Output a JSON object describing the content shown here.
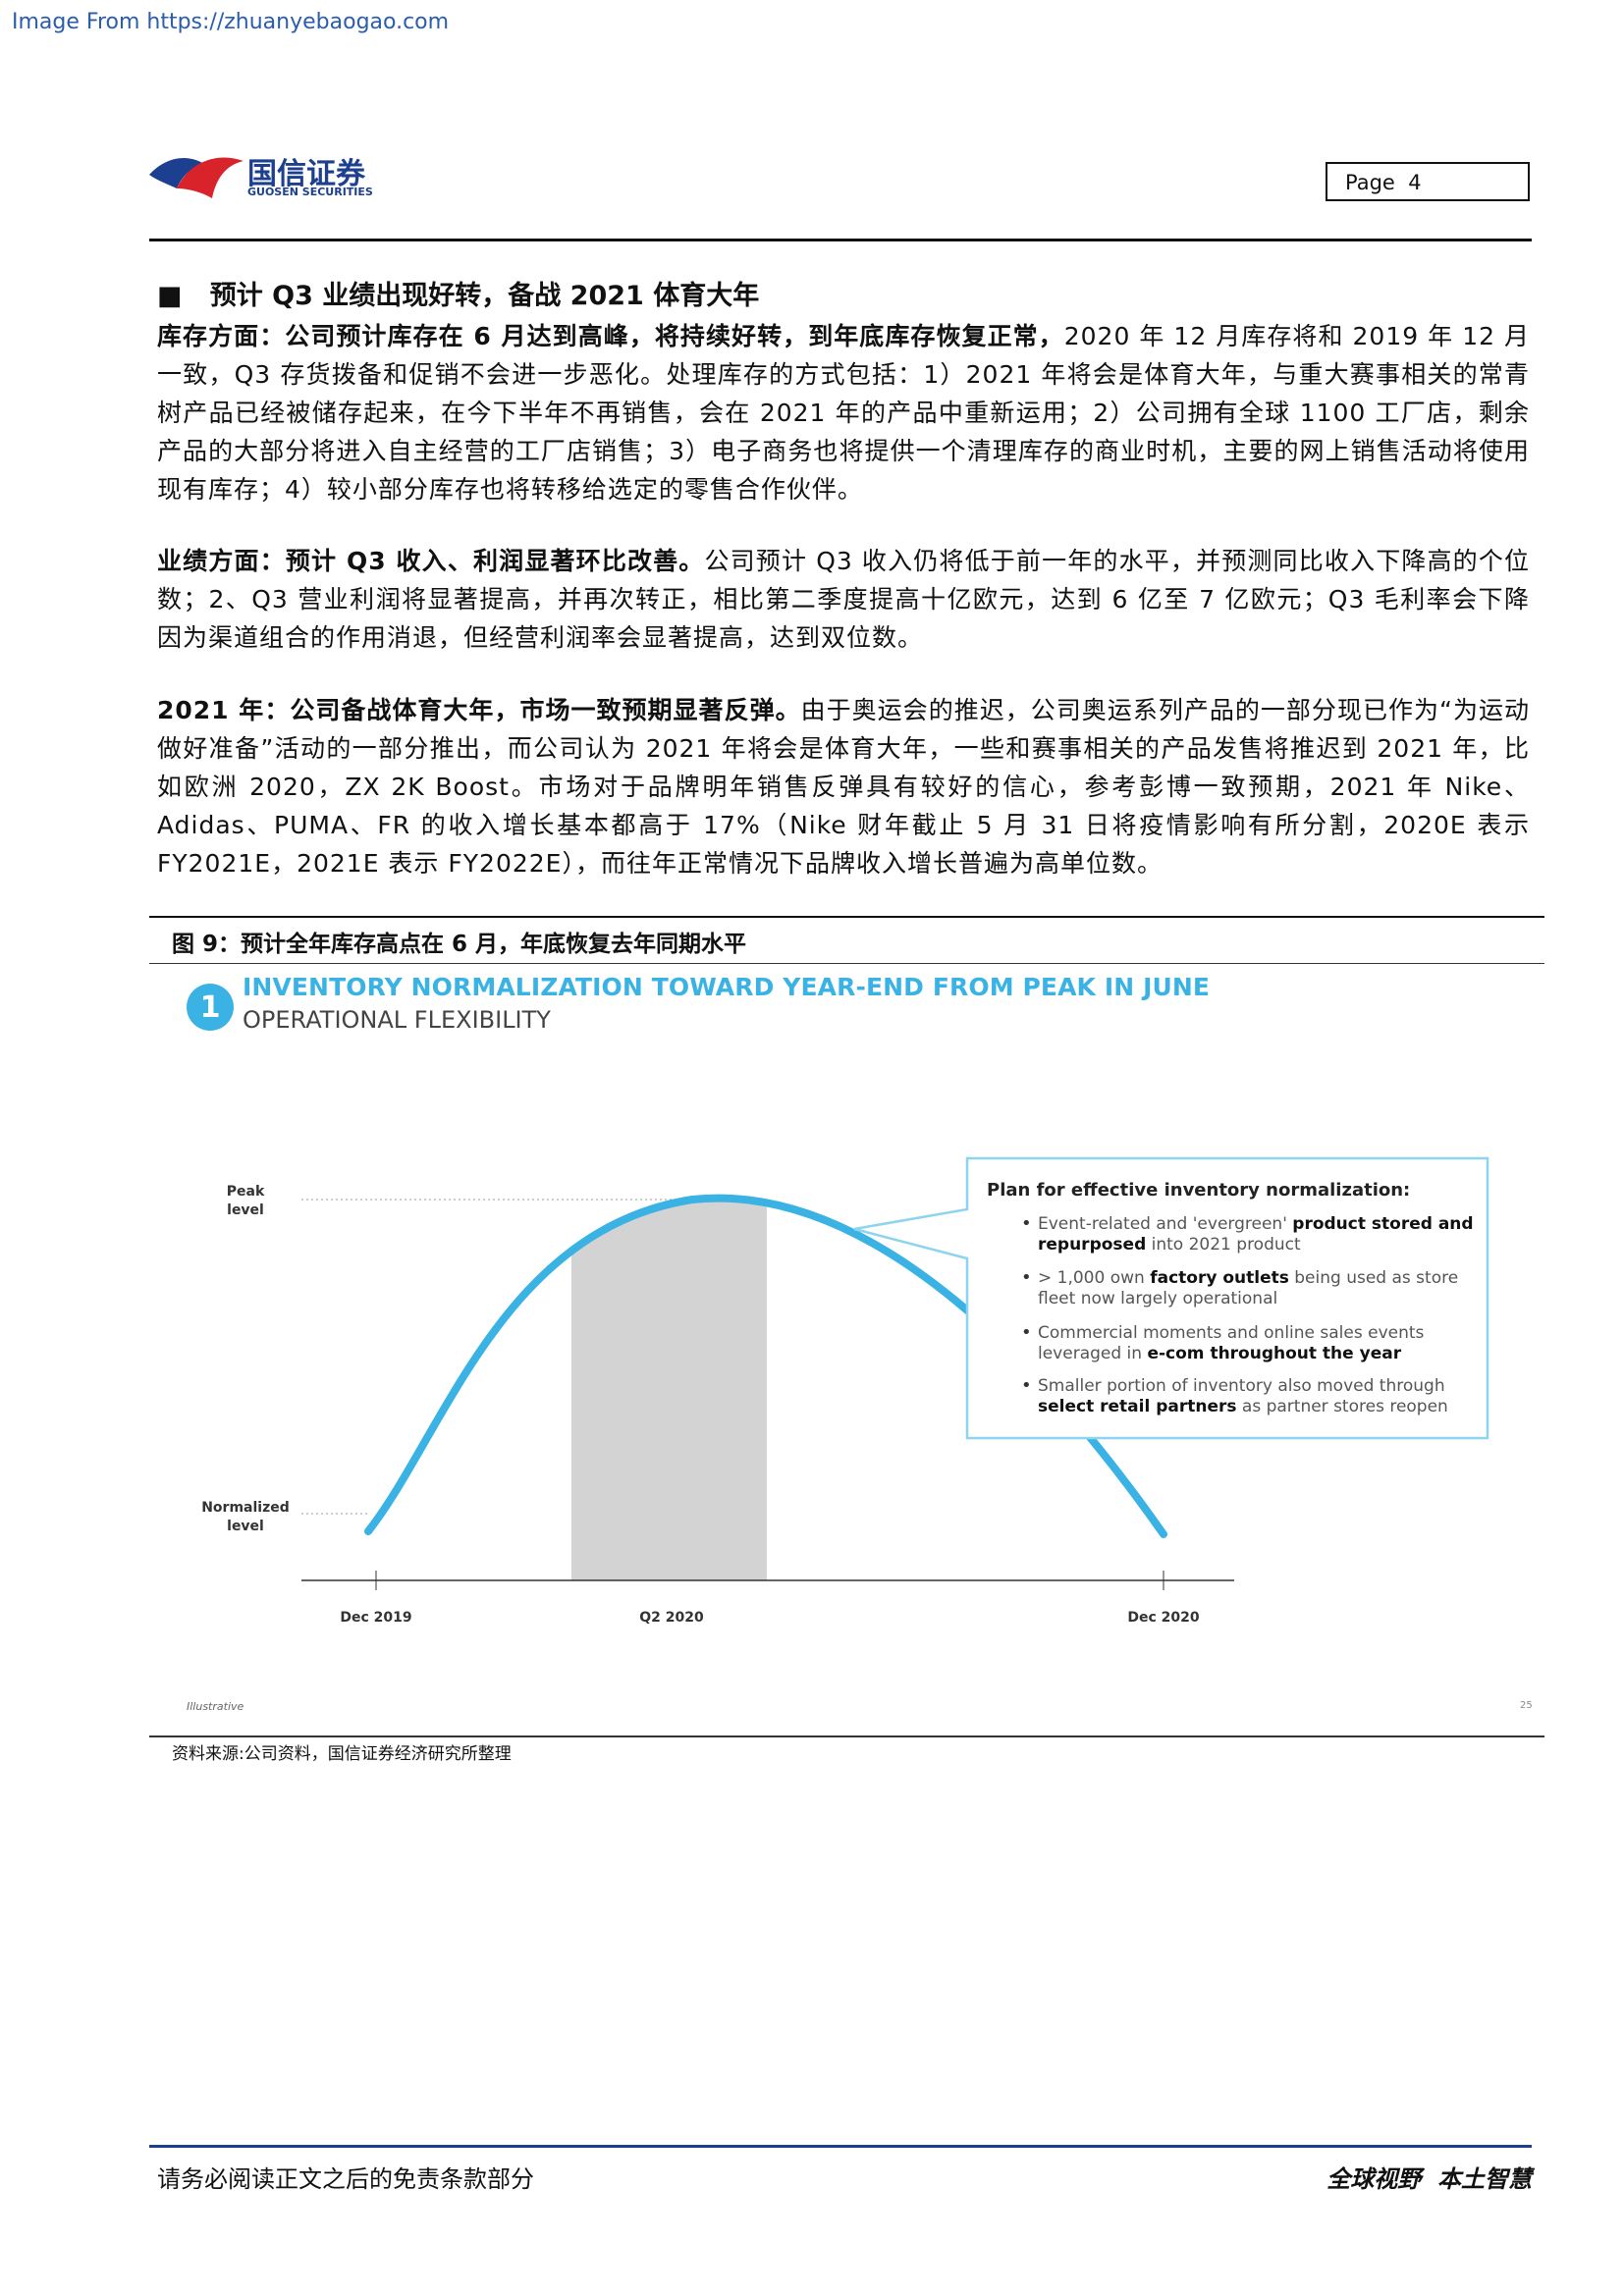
{
  "header": {
    "source": "Image From https://zhuanyebaogao.com",
    "logo_cn": "国信证券",
    "logo_en": "GUOSEN SECURITIES",
    "page": "Page  4"
  },
  "section": {
    "heading": "预计 Q3 业绩出现好转，备战 2021 体育大年",
    "paragraphs": [
      {
        "lead": "库存方面：公司预计库存在 6 月达到高峰，将持续好转，到年底库存恢复正常，",
        "body": "2020 年 12 月库存将和 2019 年 12 月一致，Q3 存货拨备和促销不会进一步恶化。处理库存的方式包括：1）2021 年将会是体育大年，与重大赛事相关的常青树产品已经被储存起来，在今下半年不再销售，会在 2021 年的产品中重新运用；2）公司拥有全球 1100 工厂店，剩余产品的大部分将进入自主经营的工厂店销售；3）电子商务也将提供一个清理库存的商业时机，主要的网上销售活动将使用现有库存；4）较小部分库存也将转移给选定的零售合作伙伴。"
      },
      {
        "lead": "业绩方面：预计 Q3 收入、利润显著环比改善。",
        "body": "公司预计 Q3 收入仍将低于前一年的水平，并预测同比收入下降高的个位数；2、Q3 营业利润将显著提高，并再次转正，相比第二季度提高十亿欧元，达到 6 亿至 7 亿欧元；Q3 毛利率会下降因为渠道组合的作用消退，但经营利润率会显著提高，达到双位数。"
      },
      {
        "lead": "2021 年：公司备战体育大年，市场一致预期显著反弹。",
        "body": "由于奥运会的推迟，公司奥运系列产品的一部分现已作为“为运动做好准备”活动的一部分推出，而公司认为 2021 年将会是体育大年，一些和赛事相关的产品发售将推迟到 2021 年，比如欧洲 2020，ZX 2K Boost。市场对于品牌明年销售反弹具有较好的信心，参考彭博一致预期，2021 年 Nike、Adidas、PUMA、FR 的收入增长基本都高于 17%（Nike 财年截止 5 月 31 日将疫情影响有所分割，2020E 表示 FY2021E，2021E 表示 FY2022E），而往年正常情况下品牌收入增长普遍为高单位数。"
      }
    ]
  },
  "figure": {
    "caption": "图 9：预计全年库存高点在 6 月，年底恢复去年同期水平",
    "number": "1",
    "title": "INVENTORY NORMALIZATION TOWARD YEAR-END FROM PEAK IN JUNE",
    "subtitle": "OPERATIONAL FLEXIBILITY",
    "peak_label": [
      "Peak",
      "level"
    ],
    "normal_label": [
      "Normalized",
      "level"
    ],
    "x_labels": [
      "Dec 2019",
      "Q2 2020",
      "Dec 2020"
    ],
    "box_title": "Plan for effective inventory normalization:",
    "bullets": [
      [
        [
          {
            "text": "Event-related and 'evergreen' "
          },
          {
            "text": "product stored and",
            "bold": true
          }
        ],
        [
          {
            "text": "repurposed",
            "bold": true
          },
          {
            "text": " into 2021 product"
          }
        ]
      ],
      [
        [
          {
            "text": "> 1,000 own "
          },
          {
            "text": "factory outlets",
            "bold": true
          },
          {
            "text": " being used as store"
          }
        ],
        [
          {
            "text": "fleet now largely operational"
          }
        ]
      ],
      [
        [
          {
            "text": "Commercial moments and online sales events"
          }
        ],
        [
          {
            "text": "leveraged in "
          },
          {
            "text": "e-com throughout the year",
            "bold": true
          }
        ]
      ],
      [
        [
          {
            "text": "Smaller portion of inventory also moved through"
          }
        ],
        [
          {
            "text": "select retail partners",
            "bold": true
          },
          {
            "text": " as partner stores reopen"
          }
        ]
      ]
    ],
    "note": "Illustrative",
    "slide_number": "25",
    "source": "资料来源:公司资料，国信证券经济研究所整理"
  },
  "footer": {
    "disclaimer": "请务必阅读正文之后的免责条款部分",
    "slogan": "全球视野  本土智慧"
  }
}
